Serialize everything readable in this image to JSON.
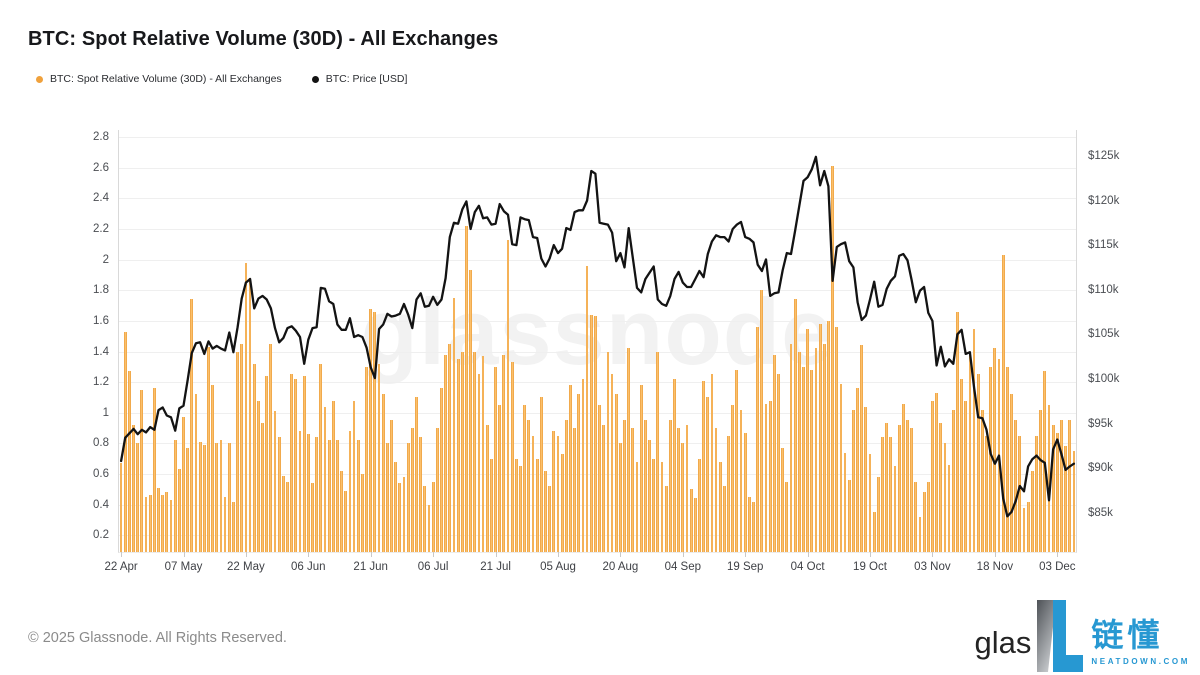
{
  "title": "BTC: Spot Relative Volume (30D) - All Exchanges",
  "legend": [
    {
      "label": "BTC: Spot Relative Volume (30D) - All Exchanges",
      "color": "#f0a13c"
    },
    {
      "label": "BTC: Price [USD]",
      "color": "#131313"
    }
  ],
  "watermark": "glassnode",
  "footer": {
    "copyright": "© 2025 Glassnode. All Rights Reserved."
  },
  "branding": {
    "glassnode_text": "glas",
    "partner_name": "链懂",
    "partner_site": "NEATDOWN.COM",
    "partner_color": "#2798d2"
  },
  "colors": {
    "bar_edge": "#e8952f",
    "bar_fill": "#fbc06c",
    "price_line": "#131313",
    "grid": "#efefef",
    "axis_text": "#4a4d52"
  },
  "chart_data": {
    "type": "bar+line",
    "frequency": "daily",
    "x_start": "2025-04-22",
    "x_end": "2025-12-07",
    "grid": true,
    "legend_position": "top-left",
    "x_tick_labels": [
      "22 Apr",
      "07 May",
      "22 May",
      "06 Jun",
      "21 Jun",
      "06 Jul",
      "21 Jul",
      "05 Aug",
      "20 Aug",
      "04 Sep",
      "19 Sep",
      "04 Oct",
      "19 Oct",
      "03 Nov",
      "18 Nov",
      "03 Dec"
    ],
    "x_tick_day_index": [
      0,
      15,
      30,
      45,
      60,
      75,
      90,
      105,
      120,
      135,
      150,
      165,
      180,
      195,
      210,
      225
    ],
    "left_axis": {
      "tick_labels": [
        "0.2",
        "0.4",
        "0.6",
        "0.8",
        "1",
        "1.2",
        "1.4",
        "1.6",
        "1.8",
        "2",
        "2.2",
        "2.4",
        "2.6",
        "2.8"
      ],
      "range": [
        0.09,
        2.847
      ]
    },
    "right_axis": {
      "tick_labels": [
        "$85k",
        "$90k",
        "$95k",
        "$100k",
        "$105k",
        "$110k",
        "$115k",
        "$120k",
        "$125k"
      ],
      "range_usd_k": [
        80.6,
        127.9
      ]
    },
    "series": [
      {
        "name": "BTC: Spot Relative Volume (30D) - All Exchanges",
        "type": "bar",
        "axis": "left",
        "color": "#f0a13c",
        "values": [
          0.67,
          1.53,
          1.27,
          0.92,
          0.8,
          1.15,
          0.45,
          0.46,
          1.16,
          0.51,
          0.46,
          0.48,
          0.43,
          0.82,
          0.63,
          0.97,
          0.77,
          1.74,
          1.12,
          0.81,
          0.79,
          1.43,
          1.18,
          0.8,
          0.82,
          0.45,
          0.8,
          0.42,
          1.4,
          1.45,
          1.98,
          1.88,
          1.32,
          1.08,
          0.93,
          1.24,
          1.45,
          1.01,
          0.84,
          0.59,
          0.55,
          1.25,
          1.22,
          0.88,
          1.24,
          0.86,
          0.54,
          0.84,
          1.32,
          1.04,
          0.82,
          1.08,
          0.82,
          0.62,
          0.49,
          0.88,
          1.08,
          0.82,
          0.6,
          1.3,
          1.68,
          1.66,
          1.32,
          1.12,
          0.8,
          0.95,
          0.68,
          0.54,
          0.58,
          0.8,
          0.9,
          1.1,
          0.84,
          0.52,
          0.4,
          0.55,
          0.9,
          1.16,
          1.38,
          1.45,
          1.75,
          1.35,
          1.4,
          2.22,
          1.93,
          1.4,
          1.25,
          1.37,
          0.92,
          0.7,
          1.3,
          1.05,
          1.38,
          2.13,
          1.33,
          0.7,
          0.65,
          1.05,
          0.95,
          0.85,
          0.7,
          1.1,
          0.62,
          0.52,
          0.88,
          0.85,
          0.73,
          0.95,
          1.18,
          0.9,
          1.12,
          1.22,
          1.96,
          1.64,
          1.63,
          1.05,
          0.92,
          1.4,
          1.25,
          1.12,
          0.8,
          0.95,
          1.42,
          0.9,
          0.68,
          1.18,
          0.95,
          0.82,
          0.7,
          1.4,
          0.68,
          0.52,
          0.95,
          1.22,
          0.9,
          0.8,
          0.92,
          0.5,
          0.44,
          0.7,
          1.21,
          1.1,
          1.25,
          0.9,
          0.68,
          0.52,
          0.85,
          1.05,
          1.28,
          1.02,
          0.87,
          0.45,
          0.42,
          1.56,
          1.8,
          1.06,
          1.08,
          1.38,
          1.25,
          0.77,
          0.55,
          1.45,
          1.74,
          1.4,
          1.3,
          1.55,
          1.28,
          1.42,
          1.58,
          1.45,
          1.6,
          2.61,
          1.56,
          1.19,
          0.74,
          0.56,
          1.02,
          1.16,
          1.44,
          1.04,
          0.73,
          0.35,
          0.58,
          0.84,
          0.93,
          0.84,
          0.65,
          0.92,
          1.06,
          0.95,
          0.9,
          0.55,
          0.32,
          0.48,
          0.55,
          1.08,
          1.13,
          0.93,
          0.8,
          0.66,
          1.02,
          1.66,
          1.22,
          1.08,
          1.38,
          1.55,
          1.25,
          1.02,
          0.85,
          1.3,
          1.42,
          1.35,
          2.03,
          1.3,
          1.12,
          0.95,
          0.85,
          0.38,
          0.42,
          0.62,
          0.85,
          1.02,
          1.27,
          1.05,
          0.92,
          0.87,
          0.95,
          0.78,
          0.95,
          0.75
        ]
      },
      {
        "name": "BTC: Price [USD]",
        "type": "line",
        "axis": "right",
        "unit": "USD thousands",
        "color": "#131313",
        "values": [
          90.8,
          93.4,
          93.9,
          94.4,
          93.8,
          94.3,
          94.0,
          94.6,
          94.3,
          96.5,
          96.8,
          95.9,
          95.7,
          94.2,
          96.7,
          97.0,
          99.9,
          102.9,
          104.0,
          104.1,
          102.8,
          104.2,
          103.4,
          103.7,
          103.4,
          103.2,
          105.2,
          103.0,
          105.8,
          109.0,
          110.8,
          111.2,
          107.9,
          109.0,
          109.3,
          108.9,
          107.9,
          105.7,
          104.1,
          104.6,
          105.7,
          105.9,
          105.4,
          104.7,
          101.7,
          104.4,
          105.7,
          105.8,
          110.2,
          110.1,
          108.7,
          108.4,
          106.1,
          105.5,
          105.5,
          106.8,
          104.7,
          104.9,
          104.7,
          103.5,
          101.3,
          100.1,
          105.6,
          106.1,
          107.3,
          107.0,
          107.1,
          107.3,
          108.4,
          107.2,
          105.7,
          108.9,
          109.6,
          108.1,
          108.2,
          109.2,
          108.3,
          108.9,
          111.3,
          115.9,
          117.5,
          117.4,
          119.0,
          119.9,
          116.8,
          118.7,
          119.4,
          118.0,
          118.1,
          117.3,
          117.4,
          119.6,
          118.8,
          118.4,
          115.1,
          115.0,
          118.1,
          117.9,
          117.8,
          115.9,
          115.8,
          113.5,
          112.6,
          113.5,
          115.0,
          114.1,
          114.6,
          116.9,
          116.7,
          118.7,
          118.9,
          118.9,
          120.0,
          123.3,
          123.0,
          117.5,
          117.4,
          117.3,
          116.4,
          113.2,
          114.1,
          112.5,
          116.9,
          113.5,
          110.2,
          109.7,
          111.2,
          111.9,
          112.6,
          108.9,
          108.4,
          108.2,
          109.3,
          111.2,
          112.0,
          110.8,
          110.3,
          110.3,
          111.2,
          112.1,
          111.4,
          114.0,
          115.4,
          116.1,
          115.9,
          115.9,
          115.4,
          116.8,
          117.3,
          117.6,
          115.9,
          115.7,
          115.3,
          112.8,
          112.1,
          113.4,
          109.3,
          109.6,
          109.7,
          112.2,
          114.1,
          114.0,
          116.6,
          119.4,
          122.2,
          122.6,
          123.5,
          124.9,
          121.7,
          123.3,
          121.6,
          111.0,
          114.8,
          115.1,
          115.3,
          113.2,
          112.5,
          108.6,
          106.6,
          107.1,
          108.9,
          110.9,
          108.1,
          108.3,
          110.1,
          111.0,
          111.5,
          113.8,
          114.0,
          113.3,
          111.1,
          108.6,
          109.9,
          110.3,
          107.4,
          106.5,
          101.5,
          103.6,
          101.4,
          102.2,
          101.7,
          105.0,
          105.5,
          102.8,
          103.0,
          99.0,
          95.7,
          95.6,
          94.3,
          91.6,
          90.5,
          91.4,
          86.6,
          84.6,
          85.1,
          86.3,
          88.0,
          87.4,
          90.2,
          91.0,
          91.4,
          90.9,
          90.6,
          86.4,
          92.1,
          93.2,
          91.6,
          89.8,
          90.2,
          90.5
        ]
      }
    ]
  }
}
